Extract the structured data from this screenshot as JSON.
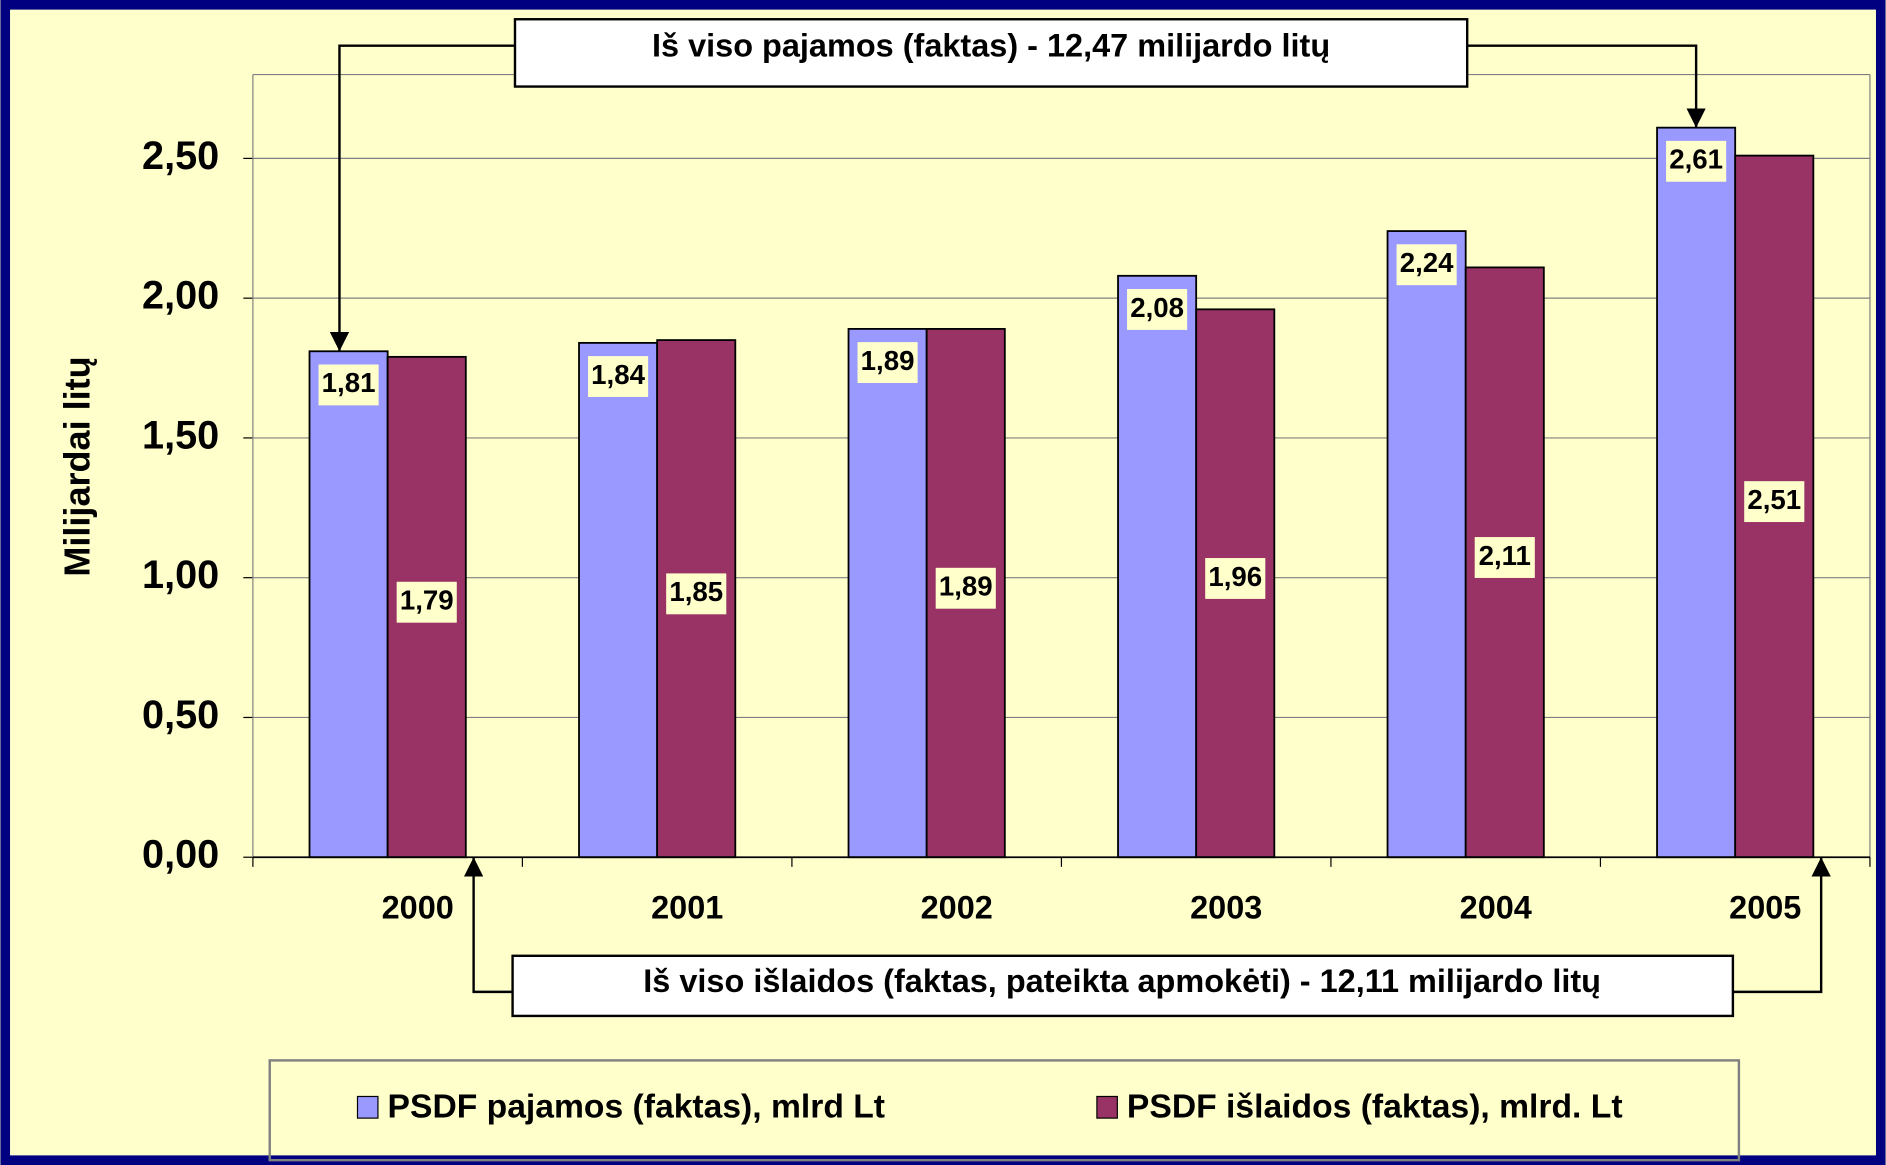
{
  "chart_data": {
    "type": "bar",
    "annotations": [
      "Iš viso pajamos (faktas) - 12,47 milijardo litų",
      "Iš viso išlaidos (faktas, pateikta apmokėti) - 12,11 milijardo litų"
    ],
    "y_label": "Milijardai litų",
    "categories": [
      "2000",
      "2001",
      "2002",
      "2003",
      "2004",
      "2005"
    ],
    "series": [
      {
        "name": "PSDF pajamos (faktas), mlrd Lt",
        "color": "#9999ff",
        "values": [
          1.81,
          1.84,
          1.89,
          2.08,
          2.24,
          2.61
        ],
        "value_labels": [
          "1,81",
          "1,84",
          "1,89",
          "2,08",
          "2,24",
          "2,61"
        ]
      },
      {
        "name": "PSDF išlaidos (faktas), mlrd. Lt",
        "color": "#993366",
        "values": [
          1.79,
          1.85,
          1.89,
          1.96,
          2.11,
          2.51
        ],
        "value_labels": [
          "1,79",
          "1,85",
          "1,89",
          "1,96",
          "2,11",
          "2,51"
        ]
      }
    ],
    "ylim": [
      0,
      2.8
    ],
    "yticks": [
      {
        "value": 0,
        "label": "0,00"
      },
      {
        "value": 0.5,
        "label": "0,50"
      },
      {
        "value": 1,
        "label": "1,00"
      },
      {
        "value": 1.5,
        "label": "1,50"
      },
      {
        "value": 2,
        "label": "2,00"
      },
      {
        "value": 2.5,
        "label": "2,50"
      }
    ],
    "grid": true
  }
}
